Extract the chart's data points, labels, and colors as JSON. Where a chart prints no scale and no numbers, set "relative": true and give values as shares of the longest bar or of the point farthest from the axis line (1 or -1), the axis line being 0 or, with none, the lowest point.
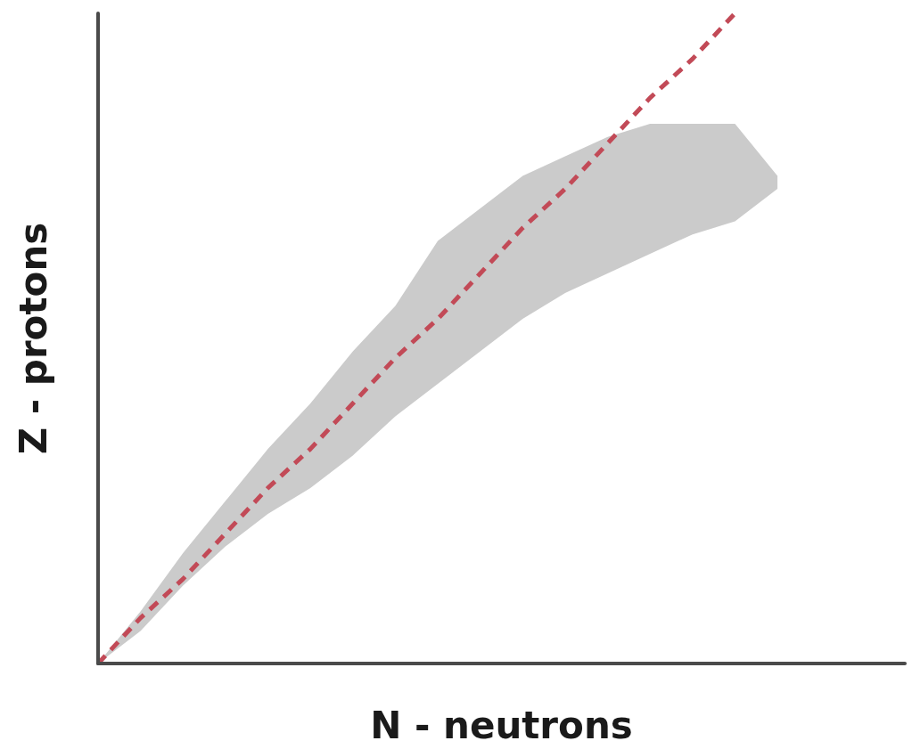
{
  "chart_data": {
    "type": "line",
    "relative": true,
    "xlabel": "N - neutrons",
    "ylabel": "Z - protons",
    "categories": [
      null,
      null,
      null,
      null,
      null,
      null,
      null,
      null,
      null,
      null,
      null,
      null,
      null,
      null,
      null,
      null,
      null,
      null,
      null,
      null
    ],
    "grid": false,
    "marker": "none",
    "series": [
      {
        "color": "#c24a57",
        "line_style": "dashed",
        "values": [
          0,
          0.07,
          0.13,
          0.2,
          0.27,
          0.33,
          0.4,
          0.47,
          0.53,
          0.6,
          0.67,
          0.73,
          0.8,
          0.87,
          0.93,
          1,
          null,
          null,
          null,
          null
        ],
        "lower": [
          0,
          0.05,
          0.12,
          0.18,
          0.23,
          0.27,
          0.32,
          0.38,
          0.43,
          0.48,
          0.53,
          0.57,
          0.6,
          0.63,
          0.66,
          0.68,
          0.73,
          null,
          null,
          null
        ],
        "upper": [
          0,
          0.08,
          0.17,
          0.25,
          0.33,
          0.4,
          0.48,
          0.55,
          0.65,
          0.7,
          0.75,
          0.78,
          0.81,
          0.83,
          0.83,
          0.83,
          0.75,
          null,
          null,
          null
        ]
      }
    ]
  }
}
